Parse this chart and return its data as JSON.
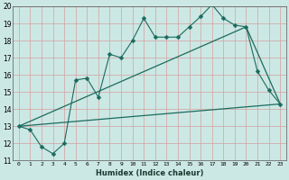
{
  "xlabel": "Humidex (Indice chaleur)",
  "x": [
    0,
    1,
    2,
    3,
    4,
    5,
    6,
    7,
    8,
    9,
    10,
    11,
    12,
    13,
    14,
    15,
    16,
    17,
    18,
    19,
    20,
    21,
    22,
    23
  ],
  "line1": [
    13.0,
    12.8,
    11.8,
    11.4,
    12.0,
    15.7,
    15.8,
    14.7,
    17.2,
    17.0,
    18.0,
    19.3,
    18.2,
    18.2,
    18.2,
    18.8,
    19.4,
    20.1,
    19.3,
    18.9,
    18.8,
    16.2,
    15.1,
    14.3
  ],
  "line2_x": [
    0,
    23
  ],
  "line2_y": [
    13.0,
    14.3
  ],
  "line3_x": [
    0,
    20,
    23
  ],
  "line3_y": [
    13.0,
    18.8,
    14.3
  ],
  "ylim": [
    11,
    20
  ],
  "xlim": [
    -0.5,
    23.5
  ],
  "yticks": [
    11,
    12,
    13,
    14,
    15,
    16,
    17,
    18,
    19,
    20
  ],
  "xticks": [
    0,
    1,
    2,
    3,
    4,
    5,
    6,
    7,
    8,
    9,
    10,
    11,
    12,
    13,
    14,
    15,
    16,
    17,
    18,
    19,
    20,
    21,
    22,
    23
  ],
  "line_color": "#1a6b5e",
  "bg_color": "#cce8e4",
  "grid_color": "#d4a0a0",
  "markersize": 2.5
}
